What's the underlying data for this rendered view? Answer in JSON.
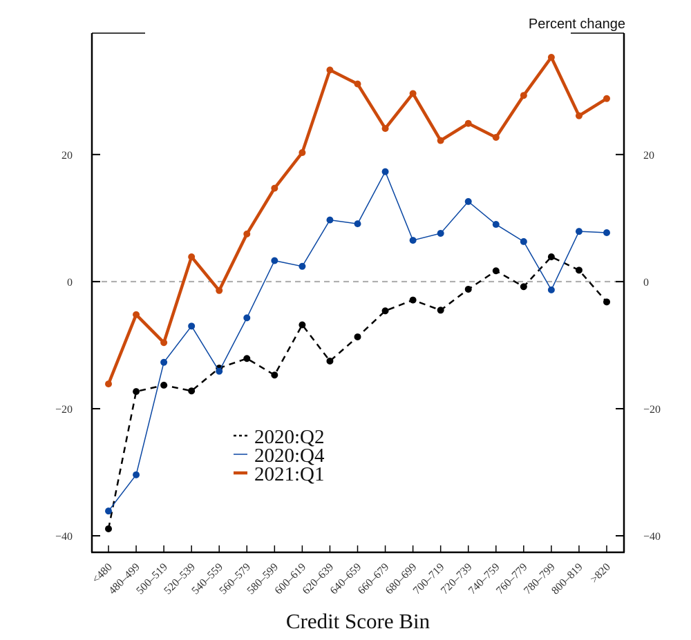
{
  "chart_data": {
    "type": "line",
    "title": "",
    "units_label": "Percent change",
    "xlabel": "Credit Score Bin",
    "ylabel": "",
    "categories": [
      "<480",
      "480–499",
      "500–519",
      "520–539",
      "540–559",
      "560–579",
      "580–599",
      "600–619",
      "620–639",
      "640–659",
      "660–679",
      "680–699",
      "700–719",
      "720–739",
      "740–759",
      "760–779",
      "780–799",
      "800–819",
      ">820"
    ],
    "yticks": [
      -40,
      -20,
      0,
      20
    ],
    "ytick_labels": [
      "−40",
      "−20",
      "0",
      "20"
    ],
    "ylim": [
      -42.6,
      39.1
    ],
    "zero_line": true,
    "grid": false,
    "legend_position": "lower-left-center",
    "series": [
      {
        "name": "2020:Q2",
        "color": "#000000",
        "style": "dashed",
        "values": [
          -38.9,
          -17.3,
          -16.3,
          -17.2,
          -13.6,
          -12.1,
          -14.7,
          -6.8,
          -12.5,
          -8.7,
          -4.6,
          -2.9,
          -4.5,
          -1.2,
          1.7,
          -0.8,
          3.9,
          1.8,
          -3.2
        ]
      },
      {
        "name": "2020:Q4",
        "color": "#0a47a3",
        "style": "thin",
        "values": [
          -36.1,
          -30.4,
          -12.7,
          -7.0,
          -14.1,
          -5.7,
          3.3,
          2.4,
          9.7,
          9.1,
          17.3,
          6.5,
          7.6,
          12.6,
          9.0,
          6.3,
          -1.3,
          7.9,
          7.7
        ]
      },
      {
        "name": "2021:Q1",
        "color": "#cc4a0c",
        "style": "thick",
        "values": [
          -16.1,
          -5.2,
          -9.6,
          3.9,
          -1.4,
          7.5,
          14.7,
          20.3,
          33.3,
          31.1,
          24.1,
          29.6,
          22.2,
          24.9,
          22.7,
          29.3,
          35.3,
          26.1,
          28.8
        ]
      }
    ]
  }
}
